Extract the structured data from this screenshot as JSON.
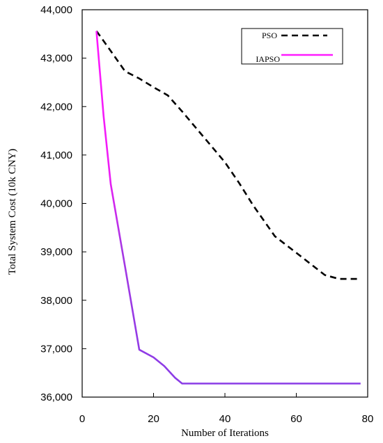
{
  "chart_data": {
    "type": "line",
    "xlabel": "Number of Iterations",
    "ylabel": "Total System Cost (10k CNY)",
    "xlim": [
      0,
      80
    ],
    "ylim": [
      36000,
      44000
    ],
    "x_ticks": [
      0,
      20,
      40,
      60,
      80
    ],
    "x_tick_labels": [
      "0",
      "20",
      "40",
      "60",
      "80"
    ],
    "y_ticks": [
      36000,
      37000,
      38000,
      39000,
      40000,
      41000,
      42000,
      43000,
      44000
    ],
    "y_tick_labels": [
      "36,000",
      "37,000",
      "38,000",
      "39,000",
      "40,000",
      "41,000",
      "42,000",
      "43,000",
      "44,000"
    ],
    "grid": false,
    "legend_position": "top-right",
    "series": [
      {
        "name": "PSO",
        "color": "#000000",
        "style": "dashed",
        "x": [
          4,
          8,
          12,
          16,
          20,
          24,
          28,
          32,
          36,
          40,
          44,
          48,
          54,
          60,
          64,
          68,
          72,
          78
        ],
        "y": [
          43560,
          43150,
          42730,
          42580,
          42400,
          42230,
          41900,
          41550,
          41200,
          40850,
          40420,
          39950,
          39320,
          38980,
          38750,
          38520,
          38440,
          38440
        ]
      },
      {
        "name": "IAPSO",
        "color_start": "#ff1aff",
        "color_end": "#8a3ce6",
        "style": "solid",
        "x": [
          4,
          6,
          8,
          12,
          16,
          20,
          23,
          26,
          28,
          40,
          60,
          78
        ],
        "y": [
          43560,
          41800,
          40400,
          38700,
          36980,
          36820,
          36640,
          36400,
          36280,
          36280,
          36280,
          36280
        ]
      }
    ]
  }
}
